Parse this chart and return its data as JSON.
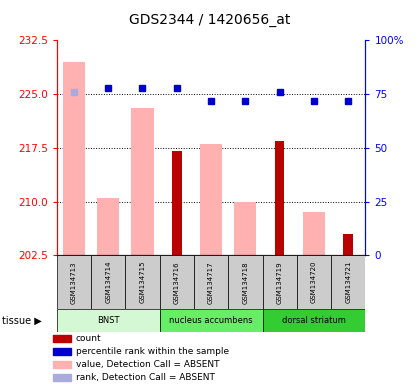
{
  "title": "GDS2344 / 1420656_at",
  "samples": [
    "GSM134713",
    "GSM134714",
    "GSM134715",
    "GSM134716",
    "GSM134717",
    "GSM134718",
    "GSM134719",
    "GSM134720",
    "GSM134721"
  ],
  "pink_bars": [
    229.5,
    210.5,
    223.0,
    null,
    218.0,
    210.0,
    null,
    208.5,
    null
  ],
  "dark_red_bars": [
    null,
    null,
    null,
    217.0,
    null,
    null,
    218.5,
    null,
    205.5
  ],
  "blue_dots_pct": [
    null,
    78,
    78,
    78,
    72,
    72,
    76,
    72,
    72
  ],
  "light_blue_dots_pct": [
    76,
    null,
    null,
    null,
    null,
    null,
    null,
    null,
    null
  ],
  "ylim_left": [
    202.5,
    232.5
  ],
  "ylim_right": [
    0,
    100
  ],
  "yticks_left": [
    202.5,
    210.0,
    217.5,
    225.0,
    232.5
  ],
  "yticks_right": [
    0,
    25,
    50,
    75,
    100
  ],
  "tissue_groups": [
    {
      "label": "BNST",
      "start": 0,
      "end": 3,
      "color": "#d4f7d4"
    },
    {
      "label": "nucleus accumbens",
      "start": 3,
      "end": 6,
      "color": "#66ee66"
    },
    {
      "label": "dorsal striatum",
      "start": 6,
      "end": 9,
      "color": "#33cc33"
    }
  ],
  "pink_color": "#ffb0b0",
  "dark_red_color": "#bb0000",
  "blue_dot_color": "#0000cc",
  "light_blue_dot_color": "#aaaadd",
  "baseline": 202.5,
  "sample_box_color": "#cccccc",
  "legend_items": [
    {
      "color": "#bb0000",
      "label": "count"
    },
    {
      "color": "#0000cc",
      "label": "percentile rank within the sample"
    },
    {
      "color": "#ffb0b0",
      "label": "value, Detection Call = ABSENT"
    },
    {
      "color": "#aaaadd",
      "label": "rank, Detection Call = ABSENT"
    }
  ]
}
